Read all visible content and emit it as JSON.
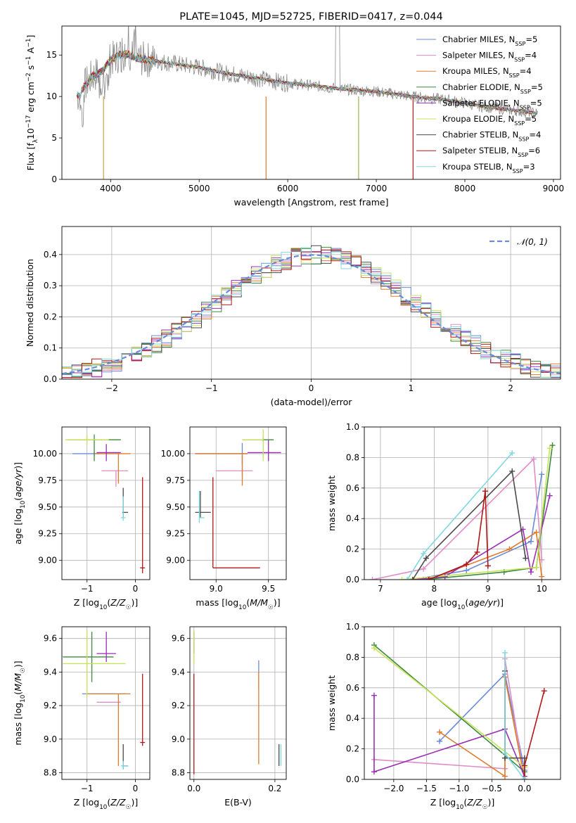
{
  "chart_data": [
    {
      "id": "spectrum",
      "type": "line",
      "title": "PLATE=1045, MJD=52725, FIBERID=0417, z=0.044",
      "xlabel": "wavelength [Angstrom, rest frame]",
      "ylabel": "Flux [f_λ10^-17 erg cm^-2 s^-1 A^-1]",
      "xlim": [
        3450,
        9080
      ],
      "ylim": [
        0,
        18.5
      ],
      "xticks": [
        "4000",
        "5000",
        "6000",
        "7000",
        "8000",
        "9000"
      ],
      "xtick_values": [
        4000,
        5000,
        6000,
        7000,
        8000,
        9000
      ],
      "yticks": [
        "0",
        "5",
        "10",
        "15"
      ],
      "ytick_values": [
        0,
        5,
        10,
        15
      ],
      "grid": false,
      "legend_position": "upper-right",
      "legend": [
        {
          "name": "Chabrier MILES, N_SSP=5",
          "color": "#6a8bd8"
        },
        {
          "name": "Salpeter MILES, N_SSP=4",
          "color": "#e08cc6"
        },
        {
          "name": "Kroupa MILES, N_SSP=4",
          "color": "#e07b2a"
        },
        {
          "name": "Chabrier ELODIE, N_SSP=5",
          "color": "#3c8a3c"
        },
        {
          "name": "Salpeter ELODIE, N_SSP=5",
          "color": "#9a2fb4"
        },
        {
          "name": "Kroupa ELODIE, N_SSP=5",
          "color": "#c8e25a"
        },
        {
          "name": "Chabrier STELIB, N_SSP=4",
          "color": "#4a4a4a"
        },
        {
          "name": "Salpeter STELIB, N_SSP=6",
          "color": "#b01818"
        },
        {
          "name": "Kroupa STELIB, N_SSP=3",
          "color": "#80d8e0"
        }
      ],
      "data_color": "#8c8c8c",
      "continuum": {
        "x": [
          3600,
          3650,
          3700,
          3800,
          3900,
          4000,
          4100,
          4200,
          4300,
          4500,
          4700,
          5000,
          5300,
          5600,
          6000,
          6300,
          6600,
          7000,
          7400,
          7800,
          8200,
          8500,
          8800
        ],
        "y": [
          10.3,
          10.0,
          11.2,
          12.5,
          13.0,
          14.4,
          15.0,
          15.1,
          14.6,
          14.3,
          14.0,
          13.5,
          12.8,
          12.3,
          11.6,
          11.3,
          10.9,
          10.6,
          10.0,
          9.6,
          8.8,
          8.4,
          8.0
        ]
      }
    },
    {
      "id": "residuals",
      "type": "histogram",
      "xlabel": "(data-model)/error",
      "ylabel": "Normed distribution",
      "xlim": [
        -2.5,
        2.5
      ],
      "ylim": [
        0,
        0.49
      ],
      "xticks": [
        "−2",
        "−1",
        "0",
        "1",
        "2"
      ],
      "xtick_values": [
        -2,
        -1,
        0,
        1,
        2
      ],
      "yticks": [
        "0.0",
        "0.1",
        "0.2",
        "0.3",
        "0.4"
      ],
      "ytick_values": [
        0,
        0.1,
        0.2,
        0.3,
        0.4
      ],
      "grid": true,
      "legend_position": "upper-right",
      "legend": [
        {
          "name": "𝒩(0, 1)",
          "color": "#6a8bd8"
        }
      ],
      "bin_width": 0.1,
      "bin_start": -2.5,
      "bin_count": 50
    },
    {
      "id": "age-vs-Z",
      "type": "errorbar",
      "xlabel": "Z [log10(Z/Z☉)]",
      "ylabel": "age [log10(age/yr)]",
      "xlim": [
        -1.52,
        0.3
      ],
      "ylim": [
        8.82,
        10.25
      ],
      "xticks": [
        "−1",
        "0"
      ],
      "xtick_values": [
        -1,
        0
      ],
      "yticks": [
        "9.00",
        "9.25",
        "9.50",
        "9.75",
        "10.00"
      ],
      "ytick_values": [
        9.0,
        9.25,
        9.5,
        9.75,
        10.0
      ],
      "grid": true,
      "points": [
        {
          "x": -0.85,
          "y": 10.0,
          "xerr": [
            0.45,
            0.1
          ],
          "yerr": [
            0.02,
            0.02
          ],
          "color": "#6a8bd8"
        },
        {
          "x": -0.4,
          "y": 9.84,
          "xerr": [
            0.3,
            0.25
          ],
          "yerr": [
            0.15,
            0.0
          ],
          "color": "#e08cc6"
        },
        {
          "x": -0.35,
          "y": 10.0,
          "xerr": [
            0.5,
            0.25
          ],
          "yerr": [
            0.28,
            0.0
          ],
          "color": "#e07b2a"
        },
        {
          "x": -0.85,
          "y": 10.13,
          "xerr": [
            0.55,
            0.55
          ],
          "yerr": [
            0.2,
            0.05
          ],
          "color": "#3c8a3c"
        },
        {
          "x": -0.6,
          "y": 10.01,
          "xerr": [
            0.2,
            0.3
          ],
          "yerr": [
            0.08,
            0.08
          ],
          "color": "#9a2fb4"
        },
        {
          "x": -1.0,
          "y": 10.13,
          "xerr": [
            0.45,
            0.45
          ],
          "yerr": [
            0.05,
            0.05
          ],
          "color": "#c8e25a"
        },
        {
          "x": -0.25,
          "y": 9.45,
          "xerr": [
            0.02,
            0.1
          ],
          "yerr": [
            0.05,
            0.23
          ],
          "color": "#4a4a4a"
        },
        {
          "x": 0.15,
          "y": 8.93,
          "xerr": [
            0.05,
            0.05
          ],
          "yerr": [
            0.05,
            0.85
          ],
          "color": "#b01818"
        },
        {
          "x": -0.25,
          "y": 9.4,
          "xerr": [
            0.05,
            0.05
          ],
          "yerr": [
            0.03,
            0.2
          ],
          "color": "#80d8e0"
        }
      ]
    },
    {
      "id": "age-vs-mass",
      "type": "errorbar",
      "xlabel": "mass [log10(M/M☉)]",
      "ylabel": "",
      "xlim": [
        8.75,
        9.67
      ],
      "ylim": [
        8.82,
        10.25
      ],
      "xticks": [
        "9.0",
        "9.5"
      ],
      "xtick_values": [
        9.0,
        9.5
      ],
      "yticks": [
        "9.00",
        "9.25",
        "9.50",
        "9.75",
        "10.00"
      ],
      "ytick_values": [
        9.0,
        9.25,
        9.5,
        9.75,
        10.0
      ],
      "grid": true,
      "points": [
        {
          "x": 9.25,
          "y": 10.0,
          "xerr": [
            0.45,
            0.05
          ],
          "yerr": [
            0.1,
            0.1
          ],
          "color": "#6a8bd8"
        },
        {
          "x": 9.25,
          "y": 9.84,
          "xerr": [
            0.25,
            0.1
          ],
          "yerr": [
            0.05,
            0.14
          ],
          "color": "#e08cc6"
        },
        {
          "x": 9.25,
          "y": 10.0,
          "xerr": [
            0.45,
            0.05
          ],
          "yerr": [
            0.3,
            0.0
          ],
          "color": "#e07b2a"
        },
        {
          "x": 9.45,
          "y": 10.13,
          "xerr": [
            0.2,
            0.1
          ],
          "yerr": [
            0.02,
            0.02
          ],
          "color": "#3c8a3c"
        },
        {
          "x": 9.5,
          "y": 10.01,
          "xerr": [
            0.2,
            0.12
          ],
          "yerr": [
            0.08,
            0.12
          ],
          "color": "#9a2fb4"
        },
        {
          "x": 9.45,
          "y": 10.13,
          "xerr": [
            0.2,
            0.0
          ],
          "yerr": [
            0.2,
            0.1
          ],
          "color": "#c8e25a"
        },
        {
          "x": 8.85,
          "y": 9.45,
          "xerr": [
            0.05,
            0.1
          ],
          "yerr": [
            0.05,
            0.2
          ],
          "color": "#4a4a4a"
        },
        {
          "x": 8.97,
          "y": 8.93,
          "xerr": [
            0.0,
            0.45
          ],
          "yerr": [
            0.0,
            0.85
          ],
          "color": "#b01818"
        },
        {
          "x": 8.84,
          "y": 9.4,
          "xerr": [
            0.0,
            0.05
          ],
          "yerr": [
            0.05,
            0.25
          ],
          "color": "#80d8e0"
        }
      ]
    },
    {
      "id": "massweight-vs-age",
      "type": "line",
      "xlabel": "age [log10(age/yr)]",
      "ylabel": "mass weight",
      "xlim": [
        6.7,
        10.35
      ],
      "ylim": [
        0,
        1.0
      ],
      "xticks": [
        "7",
        "8",
        "9",
        "10"
      ],
      "xtick_values": [
        7,
        8,
        9,
        10
      ],
      "yticks": [
        "0.0",
        "0.2",
        "0.4",
        "0.6",
        "0.8",
        "1.0"
      ],
      "ytick_values": [
        0,
        0.2,
        0.4,
        0.6,
        0.8,
        1.0
      ],
      "grid": true,
      "series": [
        {
          "color": "#6a8bd8",
          "x": [
            7.6,
            8.6,
            9.8,
            10.0
          ],
          "y": [
            0.0,
            0.06,
            0.25,
            0.69
          ]
        },
        {
          "color": "#e08cc6",
          "x": [
            6.85,
            7.8,
            9.85,
            10.0
          ],
          "y": [
            0.0,
            0.07,
            0.79,
            0.13
          ]
        },
        {
          "color": "#e07b2a",
          "x": [
            7.9,
            9.4,
            9.9,
            10.0
          ],
          "y": [
            0.0,
            0.2,
            0.31,
            0.02
          ]
        },
        {
          "color": "#3c8a3c",
          "x": [
            7.8,
            9.3,
            9.9,
            10.2
          ],
          "y": [
            0.0,
            0.05,
            0.08,
            0.88
          ]
        },
        {
          "color": "#9a2fb4",
          "x": [
            7.6,
            8.2,
            9.65,
            9.8,
            10.15
          ],
          "y": [
            0.0,
            0.02,
            0.33,
            0.05,
            0.55
          ]
        },
        {
          "color": "#c8e25a",
          "x": [
            7.4,
            9.9,
            10.15
          ],
          "y": [
            0.0,
            0.08,
            0.86
          ]
        },
        {
          "color": "#4a4a4a",
          "x": [
            7.6,
            7.85,
            9.45,
            9.7
          ],
          "y": [
            0.0,
            0.14,
            0.71,
            0.14
          ]
        },
        {
          "color": "#b01818",
          "x": [
            7.9,
            8.6,
            8.8,
            8.95,
            9.0,
            9.0
          ],
          "y": [
            0.0,
            0.1,
            0.18,
            0.58,
            0.09,
            0.09
          ]
        },
        {
          "color": "#80d8e0",
          "x": [
            7.5,
            7.8,
            9.45
          ],
          "y": [
            0.0,
            0.17,
            0.83
          ]
        }
      ]
    },
    {
      "id": "mass-vs-Z",
      "type": "errorbar",
      "xlabel": "Z [log10(Z/Z☉)]",
      "ylabel": "mass [log10(M/M☉)]",
      "xlim": [
        -1.52,
        0.3
      ],
      "ylim": [
        8.76,
        9.67
      ],
      "xticks": [
        "−1",
        "0"
      ],
      "xtick_values": [
        -1,
        0
      ],
      "yticks": [
        "8.8",
        "9.0",
        "9.2",
        "9.4",
        "9.6"
      ],
      "ytick_values": [
        8.8,
        9.0,
        9.2,
        9.4,
        9.6
      ],
      "grid": true,
      "points": [
        {
          "x": -0.7,
          "y": 9.27,
          "xerr": [
            0.4,
            0.5
          ],
          "yerr": [
            0.0,
            0.0
          ],
          "color": "#6a8bd8"
        },
        {
          "x": -0.5,
          "y": 9.22,
          "xerr": [
            0.3,
            0.2
          ],
          "yerr": [
            0.0,
            0.0
          ],
          "color": "#e08cc6"
        },
        {
          "x": -0.35,
          "y": 9.27,
          "xerr": [
            0.65,
            0.25
          ],
          "yerr": [
            0.43,
            0.0
          ],
          "color": "#e07b2a"
        },
        {
          "x": -0.9,
          "y": 9.49,
          "xerr": [
            0.6,
            0.45
          ],
          "yerr": [
            0.15,
            0.15
          ],
          "color": "#3c8a3c"
        },
        {
          "x": -0.6,
          "y": 9.51,
          "xerr": [
            0.2,
            0.2
          ],
          "yerr": [
            0.05,
            0.13
          ],
          "color": "#9a2fb4"
        },
        {
          "x": -1.0,
          "y": 9.45,
          "xerr": [
            0.5,
            0.8
          ],
          "yerr": [
            0.2,
            0.2
          ],
          "color": "#c8e25a"
        },
        {
          "x": -0.25,
          "y": 8.84,
          "xerr": [
            0.02,
            0.1
          ],
          "yerr": [
            0.02,
            0.13
          ],
          "color": "#4a4a4a"
        },
        {
          "x": 0.15,
          "y": 8.98,
          "xerr": [
            0.05,
            0.05
          ],
          "yerr": [
            0.02,
            0.41
          ],
          "color": "#b01818"
        },
        {
          "x": -0.25,
          "y": 8.84,
          "xerr": [
            0.05,
            0.1
          ],
          "yerr": [
            0.02,
            0.03
          ],
          "color": "#80d8e0"
        }
      ]
    },
    {
      "id": "mass-vs-EBV",
      "type": "errorbar",
      "xlabel": "E(B-V)",
      "ylabel": "",
      "xlim": [
        -0.01,
        0.228
      ],
      "ylim": [
        8.76,
        9.67
      ],
      "xticks": [
        "0.0",
        "0.2"
      ],
      "xtick_values": [
        0,
        0.2
      ],
      "yticks": [
        "8.8",
        "9.0",
        "9.2",
        "9.4",
        "9.6"
      ],
      "ytick_values": [
        8.8,
        9.0,
        9.2,
        9.4,
        9.6
      ],
      "grid": true,
      "points": [
        {
          "x": 0.16,
          "y": 9.4,
          "xerr": [
            0,
            0
          ],
          "yerr": [
            0.0,
            0.07
          ],
          "color": "#6a8bd8"
        },
        {
          "x": 0.16,
          "y": 9.3,
          "xerr": [
            0,
            0
          ],
          "yerr": [
            0.0,
            0.1
          ],
          "color": "#e08cc6"
        },
        {
          "x": 0.16,
          "y": 8.98,
          "xerr": [
            0,
            0
          ],
          "yerr": [
            0.13,
            0.42
          ],
          "color": "#e07b2a"
        },
        {
          "x": 0.0,
          "y": 9.49,
          "xerr": [
            0,
            0
          ],
          "yerr": [
            0.0,
            0.0
          ],
          "color": "#3c8a3c"
        },
        {
          "x": 0.0,
          "y": 9.51,
          "xerr": [
            0,
            0
          ],
          "yerr": [
            0.0,
            0.13
          ],
          "color": "#9a2fb4"
        },
        {
          "x": 0.0,
          "y": 9.45,
          "xerr": [
            0,
            0
          ],
          "yerr": [
            0.0,
            0.2
          ],
          "color": "#c8e25a"
        },
        {
          "x": 0.21,
          "y": 8.84,
          "xerr": [
            0,
            0
          ],
          "yerr": [
            0.0,
            0.13
          ],
          "color": "#4a4a4a"
        },
        {
          "x": 0.0,
          "y": 8.98,
          "xerr": [
            0,
            0
          ],
          "yerr": [
            0.19,
            0.41
          ],
          "color": "#b01818"
        },
        {
          "x": 0.215,
          "y": 8.84,
          "xerr": [
            0,
            0
          ],
          "yerr": [
            0.0,
            0.13
          ],
          "color": "#80d8e0"
        }
      ]
    },
    {
      "id": "massweight-vs-Z",
      "type": "line",
      "xlabel": "Z [log10(Z/Z☉)]",
      "ylabel": "mass weight",
      "xlim": [
        -2.45,
        0.55
      ],
      "ylim": [
        0,
        1.0
      ],
      "xticks": [
        "−2.0",
        "−1.5",
        "−1.0",
        "−0.5",
        "0.0"
      ],
      "xtick_values": [
        -2.0,
        -1.5,
        -1.0,
        -0.5,
        0.0
      ],
      "yticks": [
        "0.0",
        "0.2",
        "0.4",
        "0.6",
        "0.8",
        "1.0"
      ],
      "ytick_values": [
        0,
        0.2,
        0.4,
        0.6,
        0.8,
        1.0
      ],
      "grid": true,
      "series": [
        {
          "color": "#6a8bd8",
          "x": [
            -1.3,
            -0.3,
            0.0,
            0.0
          ],
          "y": [
            0.25,
            0.69,
            0.06,
            0.0
          ]
        },
        {
          "color": "#e08cc6",
          "x": [
            -2.3,
            -0.3,
            -0.3,
            0.0
          ],
          "y": [
            0.13,
            0.07,
            0.79,
            0.0
          ]
        },
        {
          "color": "#e07b2a",
          "x": [
            -1.3,
            -0.3,
            -0.3,
            0.0
          ],
          "y": [
            0.31,
            0.02,
            0.67,
            0.0
          ]
        },
        {
          "color": "#3c8a3c",
          "x": [
            -2.3,
            0.0,
            0.0
          ],
          "y": [
            0.88,
            0.05,
            0.0
          ]
        },
        {
          "color": "#9a2fb4",
          "x": [
            -2.3,
            -2.3,
            -0.3,
            0.0
          ],
          "y": [
            0.55,
            0.05,
            0.33,
            0.02
          ]
        },
        {
          "color": "#c8e25a",
          "x": [
            -2.3,
            0.0,
            0.0
          ],
          "y": [
            0.86,
            0.08,
            0.0
          ]
        },
        {
          "color": "#4a4a4a",
          "x": [
            -0.3,
            -0.3,
            0.0,
            0.0
          ],
          "y": [
            0.71,
            0.14,
            0.14,
            0.0
          ]
        },
        {
          "color": "#b01818",
          "x": [
            0.0,
            0.0,
            0.3
          ],
          "y": [
            0.0,
            0.09,
            0.58
          ]
        },
        {
          "color": "#80d8e0",
          "x": [
            -0.3,
            -0.3,
            0.0,
            0.0
          ],
          "y": [
            0.83,
            0.17,
            0.0,
            0.0
          ]
        }
      ]
    }
  ]
}
